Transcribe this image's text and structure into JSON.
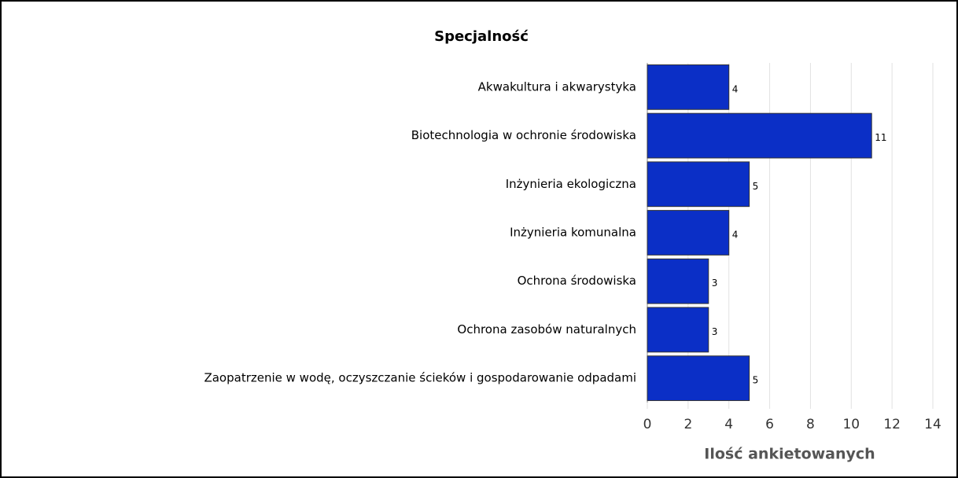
{
  "chart_data": {
    "type": "bar",
    "orientation": "horizontal",
    "title": "Specjalność",
    "categories": [
      "Akwakultura i akwarystyka",
      "Biotechnologia w ochronie środowiska",
      "Inżynieria ekologiczna",
      "Inżynieria komunalna",
      "Ochrona środowiska",
      "Ochrona zasobów naturalnych",
      "Zaopatrzenie w wodę, oczyszczanie ścieków i gospodarowanie odpadami"
    ],
    "values": [
      4,
      11,
      5,
      4,
      3,
      3,
      5
    ],
    "color": "#0b2fc6",
    "xlabel": "Ilość ankietowanych",
    "xlim": [
      0,
      14
    ],
    "xticks": [
      0,
      2,
      4,
      6,
      8,
      10,
      12,
      14
    ],
    "grid": true
  }
}
